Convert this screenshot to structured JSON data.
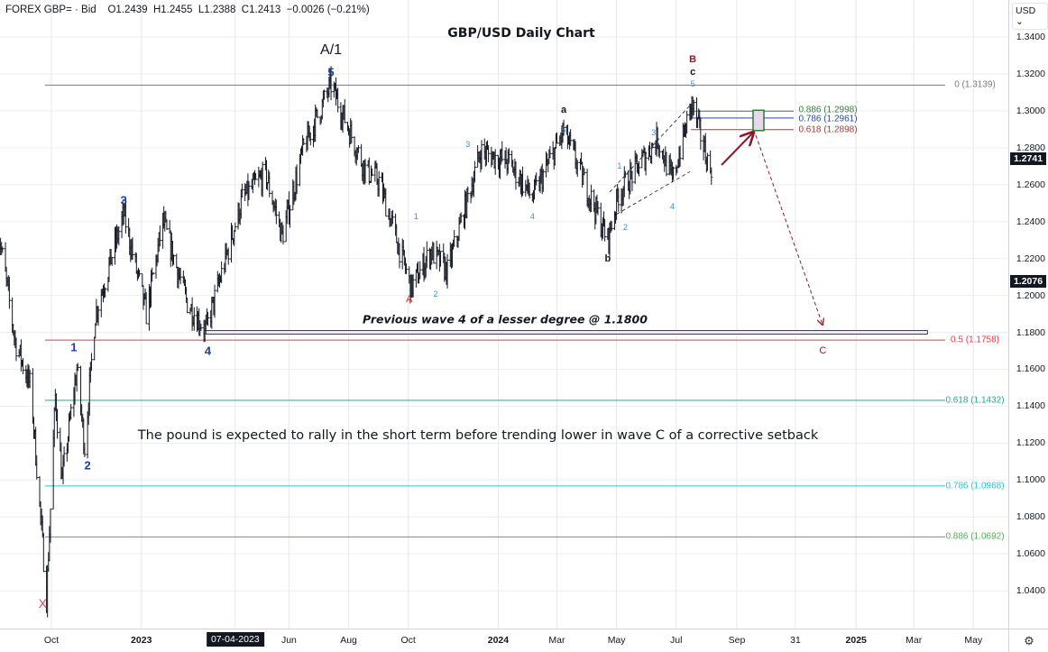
{
  "header": {
    "symbol": "FOREX GBP= · Bid",
    "open": "O1.2439",
    "high": "H1.2455",
    "low": "L1.2388",
    "close": "C1.2413",
    "change": "−0.0026 (−0.21%)"
  },
  "currency_selector": {
    "label": "USD ⌄"
  },
  "price_axis": {
    "ticks": [
      "1.3400",
      "1.3200",
      "1.3000",
      "1.2800",
      "1.2600",
      "1.2400",
      "1.2200",
      "1.2000",
      "1.1800",
      "1.1600",
      "1.1400",
      "1.1200",
      "1.1000",
      "1.0800",
      "1.0600",
      "1.0400"
    ],
    "last_price_label": "1.2741",
    "crosshair_price_label": "1.2076"
  },
  "time_axis": {
    "ticks": [
      {
        "label": "Oct",
        "date": "2022-10-01"
      },
      {
        "label": "2023",
        "date": "2023-01-01",
        "bold": true
      },
      {
        "label": "07-04-2023",
        "date": "2023-04-07",
        "highlight": true
      },
      {
        "label": "Jun",
        "date": "2023-06-01"
      },
      {
        "label": "Aug",
        "date": "2023-08-01"
      },
      {
        "label": "Oct",
        "date": "2023-10-01"
      },
      {
        "label": "2024",
        "date": "2024-01-01",
        "bold": true
      },
      {
        "label": "Mar",
        "date": "2024-03-01"
      },
      {
        "label": "May",
        "date": "2024-05-01"
      },
      {
        "label": "Jul",
        "date": "2024-07-01"
      },
      {
        "label": "Sep",
        "date": "2024-09-01"
      },
      {
        "label": "31",
        "date": "2024-10-31"
      },
      {
        "label": "2025",
        "date": "2025-01-01",
        "bold": true
      },
      {
        "label": "Mar",
        "date": "2025-03-01"
      },
      {
        "label": "May",
        "date": "2025-05-01"
      }
    ],
    "settings_icon": "gear-icon"
  },
  "chart_data": {
    "type": "ohlc",
    "title": "GBP/USD Daily Chart",
    "ylim": [
      1.02,
      1.35
    ],
    "xlim": [
      "2022-08-08",
      "2025-05-31"
    ],
    "grid": true,
    "bar_color": "#000000",
    "price_path": [
      [
        "2022-08-08",
        1.235
      ],
      [
        "2022-08-25",
        1.175
      ],
      [
        "2022-09-10",
        1.15
      ],
      [
        "2022-09-26",
        1.036
      ],
      [
        "2022-10-05",
        1.145
      ],
      [
        "2022-10-12",
        1.1
      ],
      [
        "2022-10-27",
        1.16
      ],
      [
        "2022-11-04",
        1.118
      ],
      [
        "2022-11-15",
        1.19
      ],
      [
        "2022-12-14",
        1.244
      ],
      [
        "2023-01-06",
        1.19
      ],
      [
        "2023-01-23",
        1.24
      ],
      [
        "2023-02-17",
        1.196
      ],
      [
        "2023-03-08",
        1.181
      ],
      [
        "2023-04-14",
        1.252
      ],
      [
        "2023-05-08",
        1.266
      ],
      [
        "2023-05-25",
        1.232
      ],
      [
        "2023-06-16",
        1.28
      ],
      [
        "2023-07-14",
        1.314
      ],
      [
        "2023-08-18",
        1.268
      ],
      [
        "2023-09-01",
        1.262
      ],
      [
        "2023-10-04",
        1.204
      ],
      [
        "2023-10-24",
        1.224
      ],
      [
        "2023-11-10",
        1.213
      ],
      [
        "2023-12-14",
        1.278
      ],
      [
        "2024-01-12",
        1.272
      ],
      [
        "2024-02-05",
        1.253
      ],
      [
        "2024-03-08",
        1.289
      ],
      [
        "2024-04-22",
        1.23
      ],
      [
        "2024-05-03",
        1.255
      ],
      [
        "2024-06-12",
        1.285
      ],
      [
        "2024-06-27",
        1.262
      ],
      [
        "2024-07-17",
        1.304
      ],
      [
        "2024-08-05",
        1.267
      ],
      [
        "2024-08-07",
        1.274
      ]
    ],
    "fib_levels_major": [
      {
        "label": "0 (1.3139)",
        "price": 1.3139,
        "color": "#787b86"
      },
      {
        "label": "0.5 (1.1758)",
        "price": 1.1758,
        "color": "#f23645"
      },
      {
        "label": "0.618 (1.1432)",
        "price": 1.1432,
        "color": "#22ab94"
      },
      {
        "label": "0.786 (1.0968)",
        "price": 1.0968,
        "color": "#26c6da"
      },
      {
        "label": "0.886 (1.0692)",
        "price": 1.0692,
        "color": "#4caf50"
      }
    ],
    "fib_levels_minor": [
      {
        "label": "0.886 (1.2998)",
        "price": 1.2998,
        "color": "#3d7a3d"
      },
      {
        "label": "0.786 (1.2961)",
        "price": 1.2961,
        "color": "#2948a8"
      },
      {
        "label": "0.618 (1.2898)",
        "price": 1.2898,
        "color": "#a33b3b"
      }
    ],
    "support_zone": {
      "price": 1.18,
      "start": "2023-03-08",
      "end": "2025-03-15",
      "label": "Previous wave 4 of a lesser degree @ 1.1800"
    },
    "target_box": {
      "start": "2024-09-01",
      "end": "2024-09-12",
      "top": 1.2998,
      "bottom": 1.2898
    },
    "projection": {
      "from": [
        "2024-09-05",
        1.287
      ],
      "to": [
        "2024-11-20",
        1.188
      ],
      "color": "#8b1a2b"
    },
    "rally_arrow": {
      "from": [
        "2024-08-10",
        1.272
      ],
      "to": [
        "2024-09-01",
        1.289
      ],
      "color": "#8b1a2b"
    },
    "channel_lines": [
      [
        [
          "2024-04-24",
          1.256
        ],
        [
          "2024-07-17",
          1.304
        ]
      ],
      [
        [
          "2024-05-01",
          1.244
        ],
        [
          "2024-07-15",
          1.267
        ]
      ]
    ],
    "annotations": [
      {
        "text": "A/1",
        "date": "2023-07-14",
        "price": 1.3325,
        "color": "#131722",
        "size": 16,
        "weight": "normal"
      },
      {
        "text": "5",
        "date": "2023-07-14",
        "price": 1.321,
        "color": "#1a3fa8",
        "size": 13,
        "weight": "bold"
      },
      {
        "text": "3",
        "date": "2022-12-14",
        "price": 1.2515,
        "color": "#1a3fa8",
        "size": 13,
        "weight": "bold"
      },
      {
        "text": "1",
        "date": "2022-10-24",
        "price": 1.172,
        "color": "#1a3fa8",
        "size": 13,
        "weight": "bold"
      },
      {
        "text": "2",
        "date": "2022-11-07",
        "price": 1.108,
        "color": "#1a3fa8",
        "size": 13,
        "weight": "bold"
      },
      {
        "text": "4",
        "date": "2023-03-10",
        "price": 1.17,
        "color": "#1a3fa8",
        "size": 13,
        "weight": "bold"
      },
      {
        "text": "X",
        "date": "2022-09-22",
        "price": 1.033,
        "color": "#e04848",
        "size": 14,
        "weight": "normal"
      },
      {
        "text": "A",
        "date": "2023-10-02",
        "price": 1.198,
        "color": "#c0392b",
        "size": 11,
        "weight": "normal"
      },
      {
        "text": "1",
        "date": "2023-10-09",
        "price": 1.243,
        "color": "#3d8ed8",
        "size": 9,
        "weight": "normal"
      },
      {
        "text": "2",
        "date": "2023-10-29",
        "price": 1.201,
        "color": "#3d8ed8",
        "size": 9,
        "weight": "normal"
      },
      {
        "text": "3",
        "date": "2023-12-01",
        "price": 1.282,
        "color": "#3d8ed8",
        "size": 9,
        "weight": "normal"
      },
      {
        "text": "4",
        "date": "2024-02-05",
        "price": 1.243,
        "color": "#3d8ed8",
        "size": 9,
        "weight": "normal"
      },
      {
        "text": "a",
        "date": "2024-03-08",
        "price": 1.3005,
        "color": "#131722",
        "size": 11,
        "weight": "bold"
      },
      {
        "text": "5",
        "date": "2024-03-08",
        "price": 1.2895,
        "color": "#3d8ed8",
        "size": 9,
        "weight": "normal"
      },
      {
        "text": "b",
        "date": "2024-04-22",
        "price": 1.22,
        "color": "#131722",
        "size": 11,
        "weight": "bold"
      },
      {
        "text": "1",
        "date": "2024-05-04",
        "price": 1.27,
        "color": "#3d8ed8",
        "size": 9,
        "weight": "normal"
      },
      {
        "text": "2",
        "date": "2024-05-10",
        "price": 1.237,
        "color": "#3d8ed8",
        "size": 9,
        "weight": "normal"
      },
      {
        "text": "3",
        "date": "2024-06-08",
        "price": 1.288,
        "color": "#3d8ed8",
        "size": 9,
        "weight": "normal"
      },
      {
        "text": "4",
        "date": "2024-06-27",
        "price": 1.248,
        "color": "#3d8ed8",
        "size": 9,
        "weight": "normal"
      },
      {
        "text": "5",
        "date": "2024-07-18",
        "price": 1.3145,
        "color": "#3d8ed8",
        "size": 9,
        "weight": "normal"
      },
      {
        "text": "c",
        "date": "2024-07-18",
        "price": 1.3208,
        "color": "#131722",
        "size": 11,
        "weight": "bold"
      },
      {
        "text": "B",
        "date": "2024-07-18",
        "price": 1.328,
        "color": "#8b1a2b",
        "size": 11,
        "weight": "bold"
      },
      {
        "text": "C",
        "date": "2024-11-28",
        "price": 1.17,
        "color": "#8b1a2b",
        "size": 11,
        "weight": "normal"
      }
    ],
    "commentary": "The pound is expected to rally in the short term before trending lower in wave C of a corrective setback"
  }
}
